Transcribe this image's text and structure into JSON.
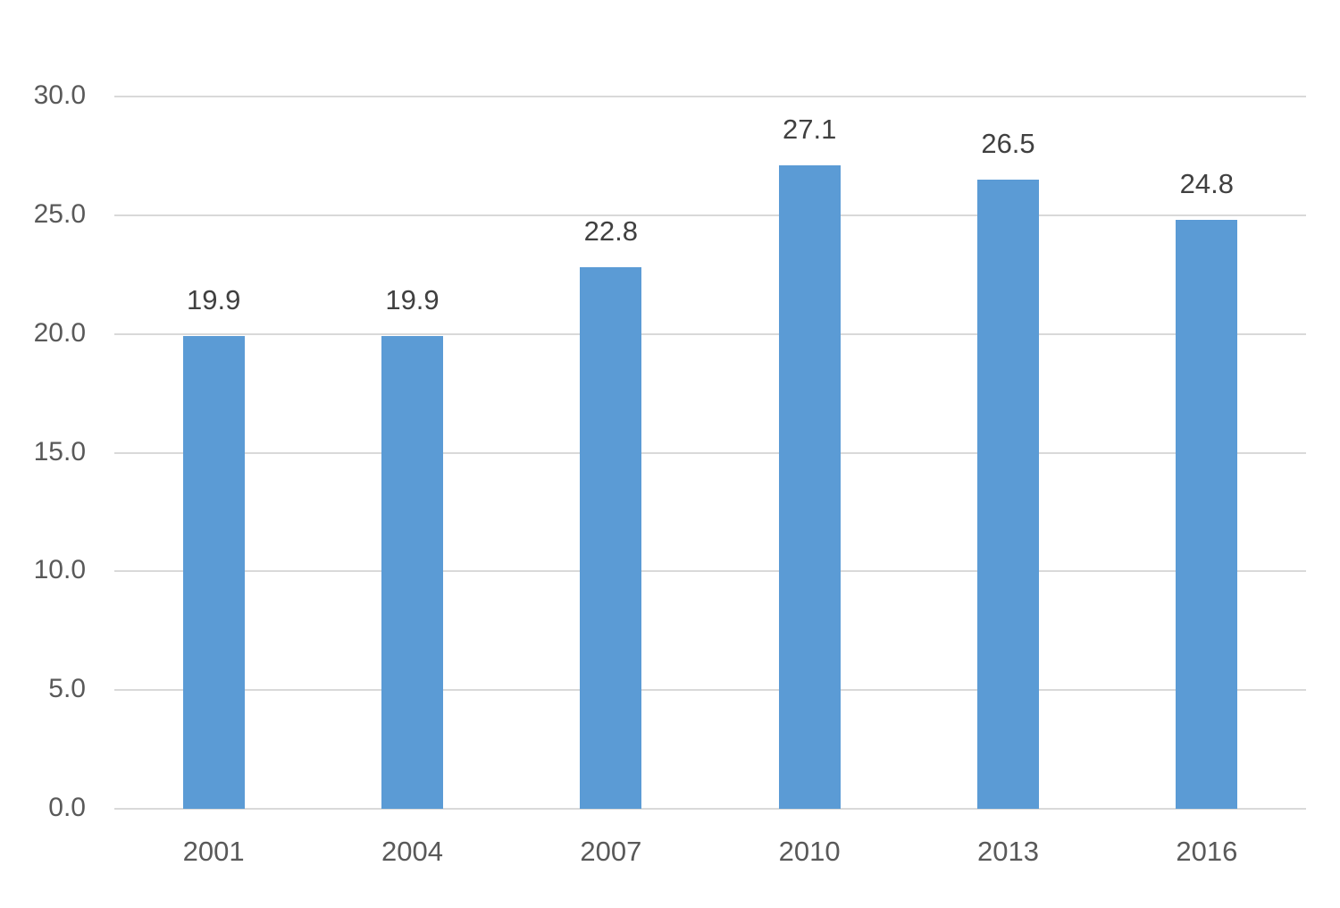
{
  "chart_data": {
    "type": "bar",
    "title": "",
    "xlabel": "",
    "ylabel": "",
    "categories": [
      "2001",
      "2004",
      "2007",
      "2010",
      "2013",
      "2016"
    ],
    "values": [
      19.9,
      19.9,
      22.8,
      27.1,
      26.5,
      24.8
    ],
    "data_labels": [
      "19.9",
      "19.9",
      "22.8",
      "27.1",
      "26.5",
      "24.8"
    ],
    "ylim": [
      0,
      30
    ],
    "yticks": [
      "0.0",
      "5.0",
      "10.0",
      "15.0",
      "20.0",
      "25.0",
      "30.0"
    ],
    "ytick_values": [
      0,
      5,
      10,
      15,
      20,
      25,
      30
    ],
    "grid": true,
    "legend": null,
    "bar_color": "#5B9BD5"
  }
}
